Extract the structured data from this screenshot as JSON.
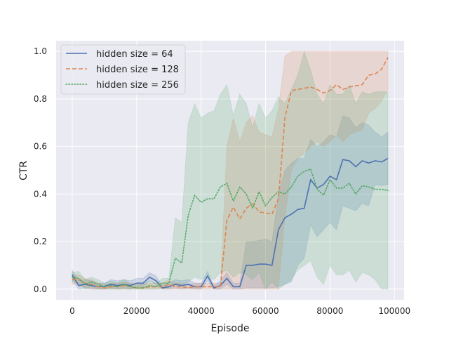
{
  "chart_data": {
    "type": "line",
    "xlabel": "Episode",
    "ylabel": "CTR",
    "xlim": [
      -5000,
      103000
    ],
    "ylim": [
      -0.045,
      1.045
    ],
    "xticks": [
      0,
      20000,
      40000,
      60000,
      80000,
      100000
    ],
    "xtick_labels": [
      "0",
      "20000",
      "40000",
      "60000",
      "80000",
      "100000"
    ],
    "yticks": [
      0.0,
      0.2,
      0.4,
      0.6,
      0.8,
      1.0
    ],
    "ytick_labels": [
      "0.0",
      "0.2",
      "0.4",
      "0.6",
      "0.8",
      "1.0"
    ],
    "grid": true,
    "legend_position": "top-left",
    "series": [
      {
        "name": "hidden size = 64",
        "color": "#4c72b0",
        "dash": "solid",
        "x": [
          0,
          2000,
          4000,
          6000,
          8000,
          10000,
          12000,
          14000,
          16000,
          18000,
          20000,
          22000,
          24000,
          26000,
          28000,
          30000,
          32000,
          34000,
          36000,
          38000,
          40000,
          42000,
          44000,
          46000,
          48000,
          50000,
          52000,
          54000,
          56000,
          58000,
          60000,
          62000,
          64000,
          66000,
          68000,
          70000,
          72000,
          74000,
          76000,
          78000,
          80000,
          82000,
          84000,
          86000,
          88000,
          90000,
          92000,
          94000,
          96000,
          98000
        ],
        "y": [
          0.06,
          0.015,
          0.02,
          0.015,
          0.01,
          0.012,
          0.02,
          0.015,
          0.02,
          0.015,
          0.025,
          0.025,
          0.05,
          0.035,
          0.005,
          0.01,
          0.02,
          0.015,
          0.02,
          0.01,
          0.01,
          0.055,
          0.005,
          0.015,
          0.045,
          0.01,
          0.01,
          0.1,
          0.1,
          0.105,
          0.105,
          0.1,
          0.25,
          0.3,
          0.315,
          0.335,
          0.34,
          0.46,
          0.425,
          0.44,
          0.475,
          0.46,
          0.545,
          0.54,
          0.515,
          0.54,
          0.53,
          0.54,
          0.535,
          0.55
        ],
        "lower": [
          0.04,
          0.0,
          0.005,
          0.0,
          0.0,
          0.0,
          0.005,
          0.0,
          0.005,
          0.0,
          0.01,
          0.01,
          0.035,
          0.02,
          0.0,
          0.0,
          0.005,
          0.0,
          0.005,
          0.0,
          0.0,
          0.035,
          0.0,
          0.0,
          0.02,
          0.0,
          0.0,
          0.005,
          0.005,
          0.005,
          0.005,
          0.005,
          0.01,
          0.02,
          0.03,
          0.1,
          0.13,
          0.27,
          0.22,
          0.25,
          0.28,
          0.25,
          0.35,
          0.34,
          0.33,
          0.36,
          0.35,
          0.44,
          0.435,
          0.44
        ],
        "upper": [
          0.08,
          0.035,
          0.04,
          0.035,
          0.025,
          0.025,
          0.04,
          0.035,
          0.04,
          0.035,
          0.045,
          0.045,
          0.07,
          0.055,
          0.015,
          0.025,
          0.04,
          0.035,
          0.04,
          0.025,
          0.025,
          0.075,
          0.015,
          0.035,
          0.07,
          0.025,
          0.025,
          0.2,
          0.2,
          0.205,
          0.21,
          0.2,
          0.4,
          0.5,
          0.53,
          0.55,
          0.55,
          0.63,
          0.6,
          0.62,
          0.65,
          0.64,
          0.73,
          0.72,
          0.68,
          0.7,
          0.69,
          0.66,
          0.64,
          0.66
        ]
      },
      {
        "name": "hidden size = 128",
        "color": "#dd8452",
        "dash": "dashed",
        "x": [
          0,
          2000,
          4000,
          6000,
          8000,
          10000,
          12000,
          14000,
          16000,
          18000,
          20000,
          22000,
          24000,
          26000,
          28000,
          30000,
          32000,
          34000,
          36000,
          38000,
          40000,
          42000,
          44000,
          46000,
          48000,
          50000,
          52000,
          54000,
          56000,
          58000,
          60000,
          62000,
          64000,
          66000,
          68000,
          70000,
          72000,
          74000,
          76000,
          78000,
          80000,
          82000,
          84000,
          86000,
          88000,
          90000,
          92000,
          94000,
          96000,
          98000
        ],
        "y": [
          0.04,
          0.04,
          0.025,
          0.02,
          0.01,
          0.005,
          0.01,
          0.01,
          0.015,
          0.01,
          0.005,
          0.005,
          0.01,
          0.01,
          0.01,
          0.02,
          0.01,
          0.01,
          0.005,
          0.01,
          0.01,
          0.01,
          0.01,
          0.01,
          0.29,
          0.345,
          0.295,
          0.34,
          0.36,
          0.325,
          0.32,
          0.315,
          0.38,
          0.72,
          0.835,
          0.84,
          0.845,
          0.85,
          0.84,
          0.825,
          0.835,
          0.86,
          0.84,
          0.85,
          0.855,
          0.86,
          0.9,
          0.905,
          0.925,
          0.975
        ],
        "lower": [
          0.02,
          0.02,
          0.005,
          0.0,
          0.0,
          0.0,
          0.0,
          0.0,
          0.0,
          0.0,
          0.0,
          0.0,
          0.0,
          0.0,
          0.0,
          0.0,
          0.0,
          0.0,
          0.0,
          0.0,
          0.0,
          0.0,
          0.0,
          0.0,
          0.0,
          0.0,
          0.0,
          0.0,
          0.0,
          0.0,
          0.0,
          0.0,
          0.0,
          0.3,
          0.5,
          0.55,
          0.57,
          0.6,
          0.62,
          0.6,
          0.62,
          0.65,
          0.62,
          0.65,
          0.66,
          0.67,
          0.74,
          0.76,
          0.79,
          0.84
        ],
        "upper": [
          0.06,
          0.06,
          0.045,
          0.04,
          0.025,
          0.02,
          0.025,
          0.025,
          0.03,
          0.025,
          0.02,
          0.02,
          0.025,
          0.025,
          0.025,
          0.04,
          0.025,
          0.025,
          0.02,
          0.025,
          0.025,
          0.025,
          0.025,
          0.025,
          0.6,
          0.72,
          0.62,
          0.7,
          0.73,
          0.66,
          0.65,
          0.64,
          0.76,
          0.98,
          1.0,
          1.0,
          1.0,
          1.0,
          1.0,
          1.0,
          1.0,
          1.0,
          1.0,
          1.0,
          1.0,
          1.0,
          1.0,
          1.0,
          1.0,
          1.0
        ]
      },
      {
        "name": "hidden size = 256",
        "color": "#55a868",
        "dash": "dotted",
        "x": [
          0,
          2000,
          4000,
          6000,
          8000,
          10000,
          12000,
          14000,
          16000,
          18000,
          20000,
          22000,
          24000,
          26000,
          28000,
          30000,
          32000,
          34000,
          36000,
          38000,
          40000,
          42000,
          44000,
          46000,
          48000,
          50000,
          52000,
          54000,
          56000,
          58000,
          60000,
          62000,
          64000,
          66000,
          68000,
          70000,
          72000,
          74000,
          76000,
          78000,
          80000,
          82000,
          84000,
          86000,
          88000,
          90000,
          92000,
          94000,
          96000,
          98000
        ],
        "y": [
          0.05,
          0.045,
          0.02,
          0.03,
          0.02,
          0.01,
          0.015,
          0.01,
          0.02,
          0.01,
          0.005,
          0.005,
          0.015,
          0.01,
          0.025,
          0.025,
          0.13,
          0.11,
          0.31,
          0.395,
          0.365,
          0.38,
          0.38,
          0.43,
          0.445,
          0.37,
          0.43,
          0.4,
          0.34,
          0.41,
          0.35,
          0.385,
          0.41,
          0.4,
          0.43,
          0.475,
          0.495,
          0.505,
          0.42,
          0.395,
          0.46,
          0.425,
          0.425,
          0.445,
          0.4,
          0.435,
          0.43,
          0.42,
          0.42,
          0.415
        ],
        "lower": [
          0.03,
          0.025,
          0.0,
          0.01,
          0.0,
          0.0,
          0.0,
          0.0,
          0.0,
          0.0,
          0.0,
          0.0,
          0.0,
          0.0,
          0.005,
          0.005,
          0.02,
          0.02,
          0.03,
          0.05,
          0.04,
          0.05,
          0.04,
          0.07,
          0.08,
          0.05,
          0.07,
          0.06,
          0.04,
          0.07,
          0.0,
          0.03,
          0.0,
          0.02,
          0.04,
          0.08,
          0.1,
          0.12,
          0.05,
          0.02,
          0.1,
          0.06,
          0.06,
          0.08,
          0.03,
          0.07,
          0.06,
          0.04,
          0.0,
          0.0
        ],
        "upper": [
          0.07,
          0.075,
          0.04,
          0.05,
          0.04,
          0.025,
          0.035,
          0.025,
          0.04,
          0.025,
          0.02,
          0.02,
          0.035,
          0.025,
          0.045,
          0.045,
          0.3,
          0.28,
          0.7,
          0.78,
          0.72,
          0.74,
          0.75,
          0.82,
          0.86,
          0.73,
          0.82,
          0.78,
          0.68,
          0.78,
          0.72,
          0.75,
          0.81,
          0.78,
          0.84,
          0.9,
          1.0,
          0.92,
          0.82,
          0.78,
          0.86,
          0.82,
          0.82,
          0.86,
          0.78,
          0.83,
          0.82,
          0.83,
          0.83,
          0.83
        ]
      }
    ]
  }
}
